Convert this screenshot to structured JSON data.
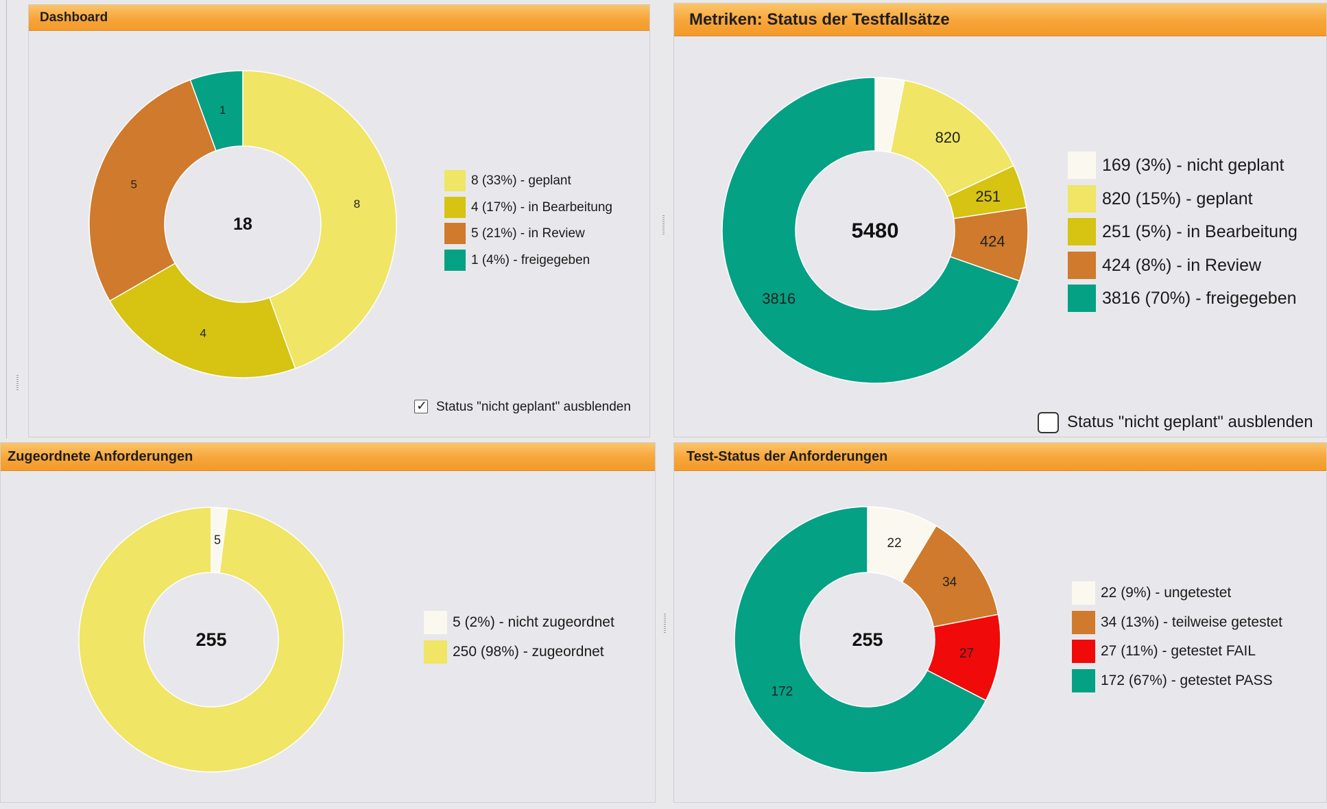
{
  "panels": [
    {
      "id": "dashboard",
      "title": "Dashboard",
      "center_value": "18",
      "chart_data": {
        "type": "pie",
        "variant": "donut",
        "slices": [
          {
            "value": 8,
            "label": "8",
            "legend": "8 (33%) - geplant",
            "color": "#f0e564"
          },
          {
            "value": 4,
            "label": "4",
            "legend": "4 (17%) - in Bearbeitung",
            "color": "#d6c312"
          },
          {
            "value": 5,
            "label": "5",
            "legend": "5 (21%) - in Review",
            "color": "#cf7a2c"
          },
          {
            "value": 1,
            "label": "1",
            "legend": "1 (4%) - freigegeben",
            "color": "#05a184"
          }
        ]
      },
      "toggle": {
        "label": "Status \"nicht geplant\" ausblenden",
        "checked": true
      }
    },
    {
      "id": "metriken",
      "title": "Metriken: Status der Testfallsätze",
      "center_value": "5480",
      "chart_data": {
        "type": "pie",
        "variant": "donut",
        "slices": [
          {
            "value": 169,
            "label": "",
            "legend": "169 (3%) - nicht geplant",
            "color": "#fbf9ef"
          },
          {
            "value": 820,
            "label": "820",
            "legend": "820 (15%) - geplant",
            "color": "#f0e564"
          },
          {
            "value": 251,
            "label": "251",
            "legend": "251 (5%) - in Bearbeitung",
            "color": "#d6c312"
          },
          {
            "value": 424,
            "label": "424",
            "legend": "424 (8%) - in Review",
            "color": "#cf7a2c"
          },
          {
            "value": 3816,
            "label": "3816",
            "legend": "3816 (70%) - freigegeben",
            "color": "#05a184"
          }
        ]
      },
      "toggle": {
        "label": "Status \"nicht geplant\" ausblenden",
        "checked": false
      }
    },
    {
      "id": "zugeordnete",
      "title": "Zugeordnete Anforderungen",
      "center_value": "255",
      "chart_data": {
        "type": "pie",
        "variant": "donut",
        "slices": [
          {
            "value": 5,
            "label": "5",
            "legend": "5 (2%) - nicht zugeordnet",
            "color": "#fbf9ef"
          },
          {
            "value": 250,
            "label": "",
            "legend": "250 (98%) - zugeordnet",
            "color": "#f0e564"
          }
        ]
      }
    },
    {
      "id": "teststatus",
      "title": "Test-Status der Anforderungen",
      "center_value": "255",
      "chart_data": {
        "type": "pie",
        "variant": "donut",
        "slices": [
          {
            "value": 22,
            "label": "22",
            "legend": "22 (9%) - ungetestet",
            "color": "#fbf9ef"
          },
          {
            "value": 34,
            "label": "34",
            "legend": "34 (13%) - teilweise getestet",
            "color": "#cf7a2c"
          },
          {
            "value": 27,
            "label": "27",
            "legend": "27 (11%) - getestet FAIL",
            "color": "#f00a0a"
          },
          {
            "value": 172,
            "label": "172",
            "legend": "172 (67%) - getestet PASS",
            "color": "#05a184"
          }
        ]
      }
    }
  ]
}
